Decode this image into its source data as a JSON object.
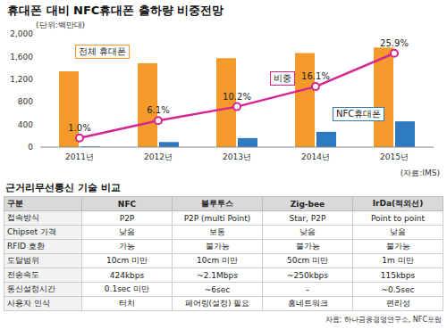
{
  "chart_data": {
    "type": "bar",
    "title": "휴대폰 대비 NFC휴대폰 출하량 비중전망",
    "subtitle": "(단위:백만대)",
    "source": "(자료:IMS)",
    "categories": [
      "2011년",
      "2012년",
      "2013년",
      "2014년",
      "2015년"
    ],
    "series": [
      {
        "name": "전체 휴대폰",
        "type": "bar",
        "color": "#f39a2b",
        "values": [
          1340,
          1480,
          1570,
          1660,
          1760
        ]
      },
      {
        "name": "NFC휴대폰",
        "type": "bar",
        "color": "#2e7bc0",
        "values": [
          13,
          90,
          160,
          270,
          455
        ]
      },
      {
        "name": "비중",
        "type": "line",
        "axis": "y2",
        "color": "#d6258f",
        "marker": "circle",
        "data_labels": true,
        "values": [
          1.0,
          6.1,
          10.2,
          16.1,
          25.9
        ],
        "value_labels": [
          "1.0%",
          "6.1%",
          "10.2%",
          "16.1%",
          "25.9%"
        ]
      }
    ],
    "ylim": [
      0,
      2000
    ],
    "yticks": [
      0,
      400,
      800,
      {
        "value": 1200,
        "label": "1,200"
      },
      {
        "value": 1600,
        "label": "1,600"
      },
      {
        "value": 2000,
        "label": "2,000"
      }
    ],
    "y2lim": [
      -1.7,
      31.6
    ],
    "grid": false
  },
  "table": {
    "title": "근거리무선통신 기술 비교",
    "header": [
      "구분",
      "NFC",
      "블루투스",
      "Zig-bee",
      "IrDa(적외선)"
    ],
    "rows": [
      [
        "접속방식",
        "P2P",
        "P2P (multi Point)",
        "Star, P2P",
        "Point to point"
      ],
      [
        "Chipset 가격",
        "낮음",
        "보통",
        "낮음",
        "낮음"
      ],
      [
        "RFID 호환",
        "가능",
        "불가능",
        "불가능",
        "불가능"
      ],
      [
        "도달범위",
        "10cm 미만",
        "10cm 미만",
        "50cm 미만",
        "1m 미만"
      ],
      [
        "전송속도",
        "424kbps",
        "~2.1Mbps",
        "~250kbps",
        "115kbps"
      ],
      [
        "통신설정시간",
        "0.1sec 미만",
        "~6sec",
        "–",
        "~0.5sec"
      ],
      [
        "사용자 인식",
        "터치",
        "페어링(설정) 필요",
        "홈네트워크",
        "편리성"
      ]
    ],
    "source": "자료: 하나금융경영연구소, NFC포럼"
  }
}
